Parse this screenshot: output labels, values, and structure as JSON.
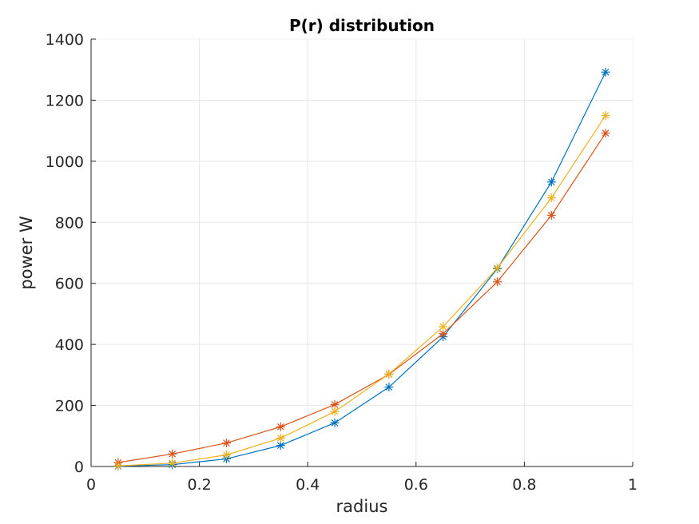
{
  "chart_data": {
    "type": "line",
    "title": "P(r) distribution",
    "xlabel": "radius",
    "ylabel": "power W",
    "xlim": [
      0,
      1
    ],
    "ylim": [
      0,
      1400
    ],
    "xticks": [
      0,
      0.2,
      0.4,
      0.6,
      0.8,
      1
    ],
    "xtick_labels": [
      "0",
      "0.2",
      "0.4",
      "0.6",
      "0.8",
      "1"
    ],
    "yticks": [
      0,
      200,
      400,
      600,
      800,
      1000,
      1200,
      1400
    ],
    "ytick_labels": [
      "0",
      "200",
      "400",
      "600",
      "800",
      "1000",
      "1200",
      "1400"
    ],
    "grid": true,
    "marker": "asterisk",
    "x": [
      0.05,
      0.15,
      0.25,
      0.35,
      0.45,
      0.55,
      0.65,
      0.75,
      0.85,
      0.95
    ],
    "series": [
      {
        "color": "#0072BD",
        "values": [
          1,
          6,
          25,
          69,
          143,
          260,
          425,
          648,
          932,
          1292
        ]
      },
      {
        "color": "#D95319",
        "values": [
          13,
          41,
          77,
          130,
          203,
          302,
          435,
          605,
          823,
          1092
        ]
      },
      {
        "color": "#EDB120",
        "values": [
          2,
          11,
          38,
          93,
          180,
          303,
          458,
          650,
          880,
          1150
        ]
      }
    ]
  }
}
